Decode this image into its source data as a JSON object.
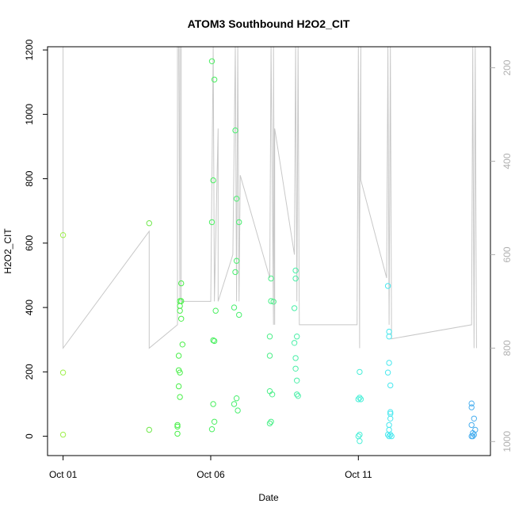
{
  "chart_data": {
    "type": "scatter",
    "title": "ATOM3 Southbound H2O2_CIT",
    "xlabel": "Date",
    "ylabel": "H2O2_CIT",
    "xlim": [
      "2017-10-00T12:00",
      "2017-10-15T12:00"
    ],
    "ylim": [
      -60,
      1210
    ],
    "x_ticks": [
      {
        "value": "2017-10-01",
        "label": "Oct 01"
      },
      {
        "value": "2017-10-06",
        "label": "Oct 06"
      },
      {
        "value": "2017-10-11",
        "label": "Oct 11"
      }
    ],
    "y_ticks": [
      "0",
      "200",
      "400",
      "600",
      "800",
      "1000",
      "1200"
    ],
    "y2_ticks": [
      "200",
      "400",
      "600",
      "800",
      "1000"
    ],
    "y2lim": [
      1030,
      155
    ],
    "y2_reversed": true,
    "background_line_color": "#c8c8c8",
    "altitude_line": [
      [
        "2017-10-01T00:00",
        800
      ],
      [
        "2017-10-01T00:00",
        155
      ],
      [
        "2017-10-01T00:00",
        800
      ],
      [
        "2017-10-03T22:00",
        550
      ],
      [
        "2017-10-03T22:00",
        800
      ],
      [
        "2017-10-04T21:00",
        750
      ],
      [
        "2017-10-04T21:00",
        155
      ],
      [
        "2017-10-04T22:00",
        155
      ],
      [
        "2017-10-04T23:00",
        700
      ],
      [
        "2017-10-04T23:00",
        155
      ],
      [
        "2017-10-05T00:00",
        155
      ],
      [
        "2017-10-05T00:00",
        700
      ],
      [
        "2017-10-06T00:00",
        700
      ],
      [
        "2017-10-06T02:00",
        155
      ],
      [
        "2017-10-06T03:00",
        700
      ],
      [
        "2017-10-06T06:00",
        330
      ],
      [
        "2017-10-06T06:00",
        700
      ],
      [
        "2017-10-06T18:00",
        600
      ],
      [
        "2017-10-06T20:00",
        155
      ],
      [
        "2017-10-06T21:00",
        700
      ],
      [
        "2017-10-06T22:00",
        155
      ],
      [
        "2017-10-06T23:00",
        700
      ],
      [
        "2017-10-07T00:00",
        430
      ],
      [
        "2017-10-08T00:00",
        650
      ],
      [
        "2017-10-08T01:00",
        155
      ],
      [
        "2017-10-08T03:00",
        750
      ],
      [
        "2017-10-08T03:00",
        155
      ],
      [
        "2017-10-08T04:00",
        750
      ],
      [
        "2017-10-08T04:00",
        330
      ],
      [
        "2017-10-08T20:00",
        600
      ],
      [
        "2017-10-08T21:00",
        155
      ],
      [
        "2017-10-08T22:00",
        700
      ],
      [
        "2017-10-08T23:00",
        155
      ],
      [
        "2017-10-09T00:00",
        750
      ],
      [
        "2017-10-10T23:00",
        750
      ],
      [
        "2017-10-11T00:00",
        155
      ],
      [
        "2017-10-11T01:00",
        800
      ],
      [
        "2017-10-11T01:00",
        550
      ],
      [
        "2017-10-11T02:00",
        155
      ],
      [
        "2017-10-11T02:00",
        440
      ],
      [
        "2017-10-11T23:00",
        650
      ],
      [
        "2017-10-12T00:00",
        155
      ],
      [
        "2017-10-12T01:00",
        750
      ],
      [
        "2017-10-12T02:00",
        155
      ],
      [
        "2017-10-12T03:00",
        780
      ],
      [
        "2017-10-14T20:00",
        750
      ],
      [
        "2017-10-14T21:00",
        155
      ],
      [
        "2017-10-14T22:00",
        800
      ],
      [
        "2017-10-14T23:00",
        155
      ],
      [
        "2017-10-15T00:00",
        800
      ]
    ],
    "points": [
      {
        "x": "2017-10-01T00:00",
        "y": 625,
        "color": "#9ef04a"
      },
      {
        "x": "2017-10-01T00:00",
        "y": 198,
        "color": "#9ef04a"
      },
      {
        "x": "2017-10-01T00:00",
        "y": 5,
        "color": "#9ef04a"
      },
      {
        "x": "2017-10-03T22:00",
        "y": 662,
        "color": "#6fe84a"
      },
      {
        "x": "2017-10-03T22:00",
        "y": 20,
        "color": "#6fe84a"
      },
      {
        "x": "2017-10-04T21:00",
        "y": 35,
        "color": "#4aef4a"
      },
      {
        "x": "2017-10-04T21:00",
        "y": 30,
        "color": "#4aef4a"
      },
      {
        "x": "2017-10-04T21:00",
        "y": 8,
        "color": "#4aef4a"
      },
      {
        "x": "2017-10-04T22:00",
        "y": 250,
        "color": "#4aef4a"
      },
      {
        "x": "2017-10-04T22:00",
        "y": 205,
        "color": "#4aef4a"
      },
      {
        "x": "2017-10-04T22:00",
        "y": 155,
        "color": "#4aef4a"
      },
      {
        "x": "2017-10-04T23:00",
        "y": 198,
        "color": "#4aef4a"
      },
      {
        "x": "2017-10-04T23:00",
        "y": 122,
        "color": "#4aef4a"
      },
      {
        "x": "2017-10-04T23:00",
        "y": 420,
        "color": "#4aef4a"
      },
      {
        "x": "2017-10-04T23:00",
        "y": 405,
        "color": "#4aef4a"
      },
      {
        "x": "2017-10-04T23:00",
        "y": 390,
        "color": "#4aef4a"
      },
      {
        "x": "2017-10-05T00:00",
        "y": 475,
        "color": "#4aef4a"
      },
      {
        "x": "2017-10-05T00:00",
        "y": 420,
        "color": "#4aef4a"
      },
      {
        "x": "2017-10-05T00:00",
        "y": 365,
        "color": "#4aef4a"
      },
      {
        "x": "2017-10-05T01:00",
        "y": 285,
        "color": "#4aef4a"
      },
      {
        "x": "2017-10-06T01:00",
        "y": 1165,
        "color": "#4aef60"
      },
      {
        "x": "2017-10-06T02:00",
        "y": 795,
        "color": "#4aef60"
      },
      {
        "x": "2017-10-06T01:00",
        "y": 665,
        "color": "#4aef60"
      },
      {
        "x": "2017-10-06T02:00",
        "y": 298,
        "color": "#4aef60"
      },
      {
        "x": "2017-10-06T03:00",
        "y": 296,
        "color": "#4aef60"
      },
      {
        "x": "2017-10-06T03:00",
        "y": 1108,
        "color": "#4aef60"
      },
      {
        "x": "2017-10-06T04:00",
        "y": 390,
        "color": "#4aef60"
      },
      {
        "x": "2017-10-06T02:00",
        "y": 100,
        "color": "#4aef60"
      },
      {
        "x": "2017-10-06T03:00",
        "y": 45,
        "color": "#4aef60"
      },
      {
        "x": "2017-10-06T01:00",
        "y": 22,
        "color": "#4aef60"
      },
      {
        "x": "2017-10-06T20:00",
        "y": 950,
        "color": "#4aef70"
      },
      {
        "x": "2017-10-06T21:00",
        "y": 738,
        "color": "#4aef70"
      },
      {
        "x": "2017-10-06T23:00",
        "y": 665,
        "color": "#4aef70"
      },
      {
        "x": "2017-10-06T21:00",
        "y": 545,
        "color": "#4aef70"
      },
      {
        "x": "2017-10-06T20:00",
        "y": 510,
        "color": "#4aef70"
      },
      {
        "x": "2017-10-06T19:00",
        "y": 400,
        "color": "#4aef70"
      },
      {
        "x": "2017-10-06T23:00",
        "y": 377,
        "color": "#4aef70"
      },
      {
        "x": "2017-10-06T21:00",
        "y": 118,
        "color": "#4aef70"
      },
      {
        "x": "2017-10-06T19:00",
        "y": 100,
        "color": "#4aef70"
      },
      {
        "x": "2017-10-06T22:00",
        "y": 80,
        "color": "#4aef70"
      },
      {
        "x": "2017-10-08T01:00",
        "y": 490,
        "color": "#4aef88"
      },
      {
        "x": "2017-10-08T01:00",
        "y": 420,
        "color": "#4aef88"
      },
      {
        "x": "2017-10-08T03:00",
        "y": 418,
        "color": "#4aef88"
      },
      {
        "x": "2017-10-08T00:00",
        "y": 310,
        "color": "#4aef88"
      },
      {
        "x": "2017-10-08T00:00",
        "y": 250,
        "color": "#4aef88"
      },
      {
        "x": "2017-10-08T00:00",
        "y": 140,
        "color": "#4aef88"
      },
      {
        "x": "2017-10-08T02:00",
        "y": 130,
        "color": "#4aef88"
      },
      {
        "x": "2017-10-08T01:00",
        "y": 45,
        "color": "#4aef88"
      },
      {
        "x": "2017-10-08T00:00",
        "y": 40,
        "color": "#4aef88"
      },
      {
        "x": "2017-10-08T21:00",
        "y": 515,
        "color": "#4aefa8"
      },
      {
        "x": "2017-10-08T21:00",
        "y": 490,
        "color": "#4aefa8"
      },
      {
        "x": "2017-10-08T20:00",
        "y": 398,
        "color": "#4aefa8"
      },
      {
        "x": "2017-10-08T22:00",
        "y": 310,
        "color": "#4aefa8"
      },
      {
        "x": "2017-10-08T20:00",
        "y": 290,
        "color": "#4aefa8"
      },
      {
        "x": "2017-10-08T21:00",
        "y": 243,
        "color": "#4aefa8"
      },
      {
        "x": "2017-10-08T21:00",
        "y": 210,
        "color": "#4aefa8"
      },
      {
        "x": "2017-10-08T22:00",
        "y": 173,
        "color": "#4aefa8"
      },
      {
        "x": "2017-10-08T22:00",
        "y": 130,
        "color": "#4aefa8"
      },
      {
        "x": "2017-10-08T23:00",
        "y": 125,
        "color": "#4aefa8"
      },
      {
        "x": "2017-10-11T01:00",
        "y": 200,
        "color": "#4aefd8"
      },
      {
        "x": "2017-10-11T01:00",
        "y": 120,
        "color": "#4aefd8"
      },
      {
        "x": "2017-10-11T02:00",
        "y": 115,
        "color": "#4aefd8"
      },
      {
        "x": "2017-10-11T00:00",
        "y": 115,
        "color": "#4aefd8"
      },
      {
        "x": "2017-10-11T01:00",
        "y": 5,
        "color": "#4aefd8"
      },
      {
        "x": "2017-10-11T00:00",
        "y": 0,
        "color": "#4aefd8"
      },
      {
        "x": "2017-10-11T01:00",
        "y": -15,
        "color": "#4aefd8"
      },
      {
        "x": "2017-10-12T00:00",
        "y": 467,
        "color": "#4ae8ef"
      },
      {
        "x": "2017-10-12T01:00",
        "y": 325,
        "color": "#4ae8ef"
      },
      {
        "x": "2017-10-12T01:00",
        "y": 310,
        "color": "#4ae8ef"
      },
      {
        "x": "2017-10-12T01:00",
        "y": 228,
        "color": "#4ae8ef"
      },
      {
        "x": "2017-10-12T00:00",
        "y": 198,
        "color": "#4ae8ef"
      },
      {
        "x": "2017-10-12T02:00",
        "y": 158,
        "color": "#4ae8ef"
      },
      {
        "x": "2017-10-12T02:00",
        "y": 75,
        "color": "#4ae8ef"
      },
      {
        "x": "2017-10-12T02:00",
        "y": 70,
        "color": "#4ae8ef"
      },
      {
        "x": "2017-10-12T02:00",
        "y": 55,
        "color": "#4ae8ef"
      },
      {
        "x": "2017-10-12T01:00",
        "y": 35,
        "color": "#4ae8ef"
      },
      {
        "x": "2017-10-12T01:00",
        "y": 20,
        "color": "#4ae8ef"
      },
      {
        "x": "2017-10-12T00:00",
        "y": 5,
        "color": "#4ae8ef"
      },
      {
        "x": "2017-10-12T02:00",
        "y": 5,
        "color": "#4ae8ef"
      },
      {
        "x": "2017-10-12T01:00",
        "y": 0,
        "color": "#4ae8ef"
      },
      {
        "x": "2017-10-12T03:00",
        "y": 0,
        "color": "#4ae8ef"
      },
      {
        "x": "2017-10-14T20:00",
        "y": 102,
        "color": "#4aafef"
      },
      {
        "x": "2017-10-14T20:00",
        "y": 90,
        "color": "#4aafef"
      },
      {
        "x": "2017-10-14T22:00",
        "y": 55,
        "color": "#4aafef"
      },
      {
        "x": "2017-10-14T20:00",
        "y": 35,
        "color": "#4aafef"
      },
      {
        "x": "2017-10-14T23:00",
        "y": 20,
        "color": "#4aafef"
      },
      {
        "x": "2017-10-14T21:00",
        "y": 10,
        "color": "#4aafef"
      },
      {
        "x": "2017-10-14T20:00",
        "y": 0,
        "color": "#4aafef"
      },
      {
        "x": "2017-10-14T21:00",
        "y": 0,
        "color": "#4aafef"
      },
      {
        "x": "2017-10-14T22:00",
        "y": 5,
        "color": "#4aafef"
      }
    ]
  }
}
